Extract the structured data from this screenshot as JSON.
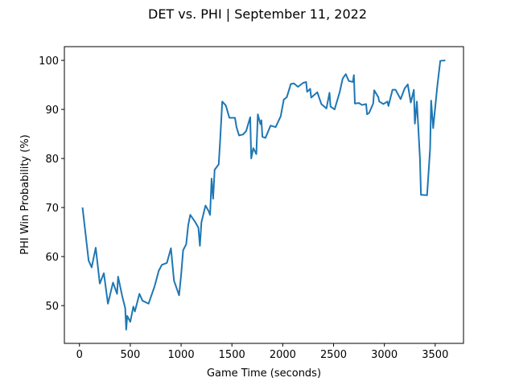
{
  "chart_data": {
    "type": "line",
    "title": "DET vs. PHI | September 11, 2022",
    "xlabel": "Game Time (seconds)",
    "ylabel": "PHI Win Probability (%)",
    "color": "#1f77b4",
    "x": [
      30,
      90,
      120,
      160,
      200,
      240,
      280,
      330,
      370,
      380,
      420,
      450,
      460,
      470,
      500,
      530,
      545,
      590,
      620,
      680,
      740,
      780,
      810,
      860,
      900,
      930,
      980,
      1000,
      1020,
      1050,
      1070,
      1090,
      1140,
      1170,
      1185,
      1200,
      1240,
      1270,
      1285,
      1300,
      1315,
      1330,
      1370,
      1385,
      1405,
      1440,
      1475,
      1530,
      1545,
      1570,
      1610,
      1640,
      1680,
      1690,
      1710,
      1740,
      1755,
      1780,
      1790,
      1800,
      1830,
      1880,
      1930,
      1980,
      2010,
      2040,
      2080,
      2110,
      2150,
      2200,
      2230,
      2240,
      2270,
      2280,
      2340,
      2380,
      2430,
      2460,
      2470,
      2510,
      2560,
      2590,
      2620,
      2650,
      2690,
      2700,
      2710,
      2750,
      2780,
      2820,
      2830,
      2850,
      2890,
      2900,
      2940,
      2950,
      2990,
      3030,
      3040,
      3080,
      3110,
      3160,
      3200,
      3230,
      3260,
      3290,
      3300,
      3320,
      3350,
      3360,
      3420,
      3450,
      3460,
      3480,
      3520,
      3550,
      3600
    ],
    "values": [
      70.0,
      59.2,
      57.8,
      61.8,
      54.5,
      56.6,
      50.4,
      54.7,
      52.4,
      55.9,
      52.0,
      49.5,
      45.1,
      47.9,
      46.7,
      49.8,
      48.8,
      52.4,
      51.0,
      50.4,
      54.0,
      57.1,
      58.3,
      58.7,
      61.7,
      55.1,
      52.1,
      56.2,
      61.3,
      62.5,
      66.4,
      68.5,
      67.0,
      65.9,
      62.2,
      67.0,
      70.4,
      69.3,
      68.5,
      75.9,
      71.8,
      77.7,
      78.8,
      84.0,
      91.6,
      90.8,
      88.3,
      88.3,
      86.4,
      84.7,
      84.9,
      85.6,
      88.4,
      80.0,
      82.1,
      80.9,
      89.0,
      87.0,
      87.8,
      84.4,
      84.2,
      86.7,
      86.4,
      88.6,
      92.0,
      92.5,
      95.2,
      95.3,
      94.6,
      95.4,
      95.6,
      93.6,
      94.2,
      92.4,
      93.5,
      91.1,
      90.2,
      93.4,
      90.6,
      90.0,
      93.5,
      96.3,
      97.2,
      95.8,
      95.6,
      97.0,
      91.2,
      91.3,
      90.9,
      91.1,
      89.0,
      89.3,
      91.2,
      93.9,
      92.5,
      91.6,
      91.1,
      91.6,
      90.7,
      94.0,
      94.0,
      92.1,
      94.3,
      95.1,
      91.4,
      94.0,
      87.1,
      91.6,
      80.0,
      72.6,
      72.5,
      82.0,
      91.8,
      86.2,
      94.6,
      99.9,
      100.0
    ],
    "xlim": [
      -148.5,
      3778.5
    ],
    "ylim": [
      42.3,
      102.8
    ],
    "xticks": [
      0,
      500,
      1000,
      1500,
      2000,
      2500,
      3000,
      3500
    ],
    "yticks": [
      50,
      60,
      70,
      80,
      90,
      100
    ]
  }
}
